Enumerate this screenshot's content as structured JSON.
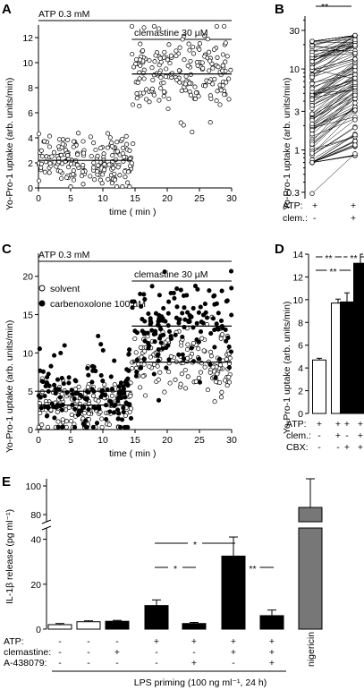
{
  "chart_data": [
    {
      "panel": "A",
      "type": "scatter",
      "xlabel": "time  ( min )",
      "ylabel": "Yo-Pro-1 uptake (arb. units/min)",
      "xlim": [
        0,
        30
      ],
      "ylim": [
        0,
        13
      ],
      "xticks": [
        0,
        5,
        10,
        15,
        20,
        25,
        30
      ],
      "yticks": [
        0,
        2,
        4,
        6,
        8,
        10,
        12
      ],
      "annotations": [
        {
          "text": "ATP 0.3 mM",
          "x_range": [
            0,
            30
          ]
        },
        {
          "text": "clemastine 30 µM",
          "x_range": [
            14.5,
            30
          ]
        }
      ],
      "fit_lines": [
        {
          "x": [
            0,
            14.5
          ],
          "y": 2.2
        },
        {
          "x": [
            14.5,
            30
          ],
          "y": 9.1
        }
      ],
      "series": [
        {
          "points_ranges": [
            {
              "x": [
                0,
                14.5
              ],
              "y_mean": 2.2,
              "y_sd": 1.0,
              "n": 190
            },
            {
              "x": [
                14.5,
                30
              ],
              "y_mean": 9.1,
              "y_sd": 1.6,
              "n": 190
            }
          ]
        }
      ]
    },
    {
      "panel": "B",
      "type": "line",
      "ylabel": "Yo-Pro-1 uptake (arb. units/min)",
      "yscale": "log",
      "ylim": [
        0.25,
        45
      ],
      "yticks": [
        0.3,
        1,
        3,
        10,
        30
      ],
      "categories": [
        [
          "ATP:",
          "+",
          "+"
        ],
        [
          "clem.:",
          "-",
          "+"
        ]
      ],
      "significance": "**",
      "paired_values": [
        [
          0.3,
          0.9
        ],
        [
          0.7,
          1.6
        ],
        [
          1.1,
          2.8
        ],
        [
          1.5,
          3.6
        ],
        [
          2.0,
          4.8
        ],
        [
          2.5,
          5.4
        ],
        [
          3.0,
          6.4
        ],
        [
          4.0,
          7.8
        ],
        [
          5.5,
          10.5
        ],
        [
          7.0,
          13.0
        ],
        [
          10.0,
          16.0
        ],
        [
          15.0,
          22.0
        ],
        [
          20.0,
          24.0
        ]
      ]
    },
    {
      "panel": "C",
      "type": "scatter",
      "xlabel": "time  ( min )",
      "ylabel": "Yo-Pro-1 uptake (arb. units/min)",
      "xlim": [
        0,
        30
      ],
      "ylim": [
        0,
        23
      ],
      "xticks": [
        0,
        5,
        10,
        15,
        20,
        25,
        30
      ],
      "yticks": [
        0,
        5,
        10,
        15,
        20
      ],
      "annotations": [
        {
          "text": "ATP 0.3 mM",
          "x_range": [
            0,
            30
          ]
        },
        {
          "text": "clemastine 30 µM",
          "x_range": [
            14.5,
            30
          ]
        }
      ],
      "series": [
        {
          "name": "solvent",
          "marker": "open",
          "points_ranges": [
            {
              "x": [
                0,
                14.5
              ],
              "y_mean": 3.2,
              "y_sd": 1.8
            },
            {
              "x": [
                14.5,
                30
              ],
              "y_mean": 8.8,
              "y_sd": 2.3
            }
          ],
          "fit_lines": [
            {
              "x": [
                0,
                14.5
              ],
              "y": 3.2
            },
            {
              "x": [
                14.5,
                30
              ],
              "y": 8.8
            }
          ]
        },
        {
          "name": "carbenoxolone 100 µM",
          "marker": "filled",
          "points_ranges": [
            {
              "x": [
                0,
                14.5
              ],
              "y_mean": 5.0,
              "y_sd": 2.6
            },
            {
              "x": [
                14.5,
                30
              ],
              "y_mean": 13.5,
              "y_sd": 3.0
            }
          ],
          "fit_lines": [
            {
              "x": [
                0,
                14.5
              ],
              "y": 5.0
            },
            {
              "x": [
                14.5,
                30
              ],
              "y": 13.5
            }
          ]
        }
      ]
    },
    {
      "panel": "D",
      "type": "bar",
      "ylabel": "Yo-Pro-1 uptake (arb. units/min)",
      "ylim": [
        0,
        14
      ],
      "yticks": [
        0,
        2,
        4,
        6,
        8,
        10,
        12,
        14
      ],
      "rows": [
        {
          "label": "ATP:",
          "values": [
            "+",
            "+",
            "+",
            "+"
          ]
        },
        {
          "label": "clem.:",
          "values": [
            "-",
            "+",
            "-",
            "+"
          ]
        },
        {
          "label": "CBX:",
          "values": [
            "-",
            "-",
            "+",
            "+"
          ]
        }
      ],
      "values": [
        4.7,
        9.7,
        9.8,
        13.2
      ],
      "errors": [
        0.15,
        0.35,
        0.8,
        0.8
      ],
      "fills": [
        "white",
        "white",
        "black",
        "black"
      ],
      "significance": [
        {
          "bars": [
            0,
            1
          ],
          "label": "**"
        },
        {
          "bars": [
            2,
            3
          ],
          "label": "**"
        },
        {
          "bars": [
            0,
            2
          ],
          "label": "**"
        }
      ]
    },
    {
      "panel": "E",
      "type": "bar",
      "ylabel": "IL-1β release  (pg ml⁻¹)",
      "ylim_lower": [
        0,
        45
      ],
      "ylim_upper": [
        75,
        105
      ],
      "yticks": [
        0,
        20,
        40,
        80,
        100
      ],
      "rows": [
        {
          "label": "ATP:",
          "values": [
            "-",
            "-",
            "-",
            "+",
            "+",
            "+",
            "+"
          ]
        },
        {
          "label": "clemastine:",
          "values": [
            "-",
            "-",
            "+",
            "-",
            "-",
            "+",
            "+"
          ]
        },
        {
          "label": "A-438079:",
          "values": [
            "-",
            "-",
            "-",
            "-",
            "+",
            "-",
            "+"
          ]
        }
      ],
      "extra_label": "nigericin",
      "xlabel": "LPS priming  (100 ng ml⁻¹, 24 h)",
      "values": [
        2.0,
        3.3,
        3.5,
        10.5,
        2.5,
        32.5,
        6.0,
        85.0
      ],
      "errors": [
        0.5,
        0.4,
        0.4,
        2.5,
        0.5,
        8.5,
        2.5,
        20.0
      ],
      "fills": [
        "white",
        "white",
        "black",
        "black",
        "black",
        "black",
        "black",
        "gray"
      ],
      "significance": [
        {
          "bars": [
            3,
            5
          ],
          "label": "*"
        },
        {
          "bars": [
            3,
            4
          ],
          "label": "*"
        },
        {
          "bars": [
            5,
            6
          ],
          "label": "**"
        }
      ]
    }
  ]
}
